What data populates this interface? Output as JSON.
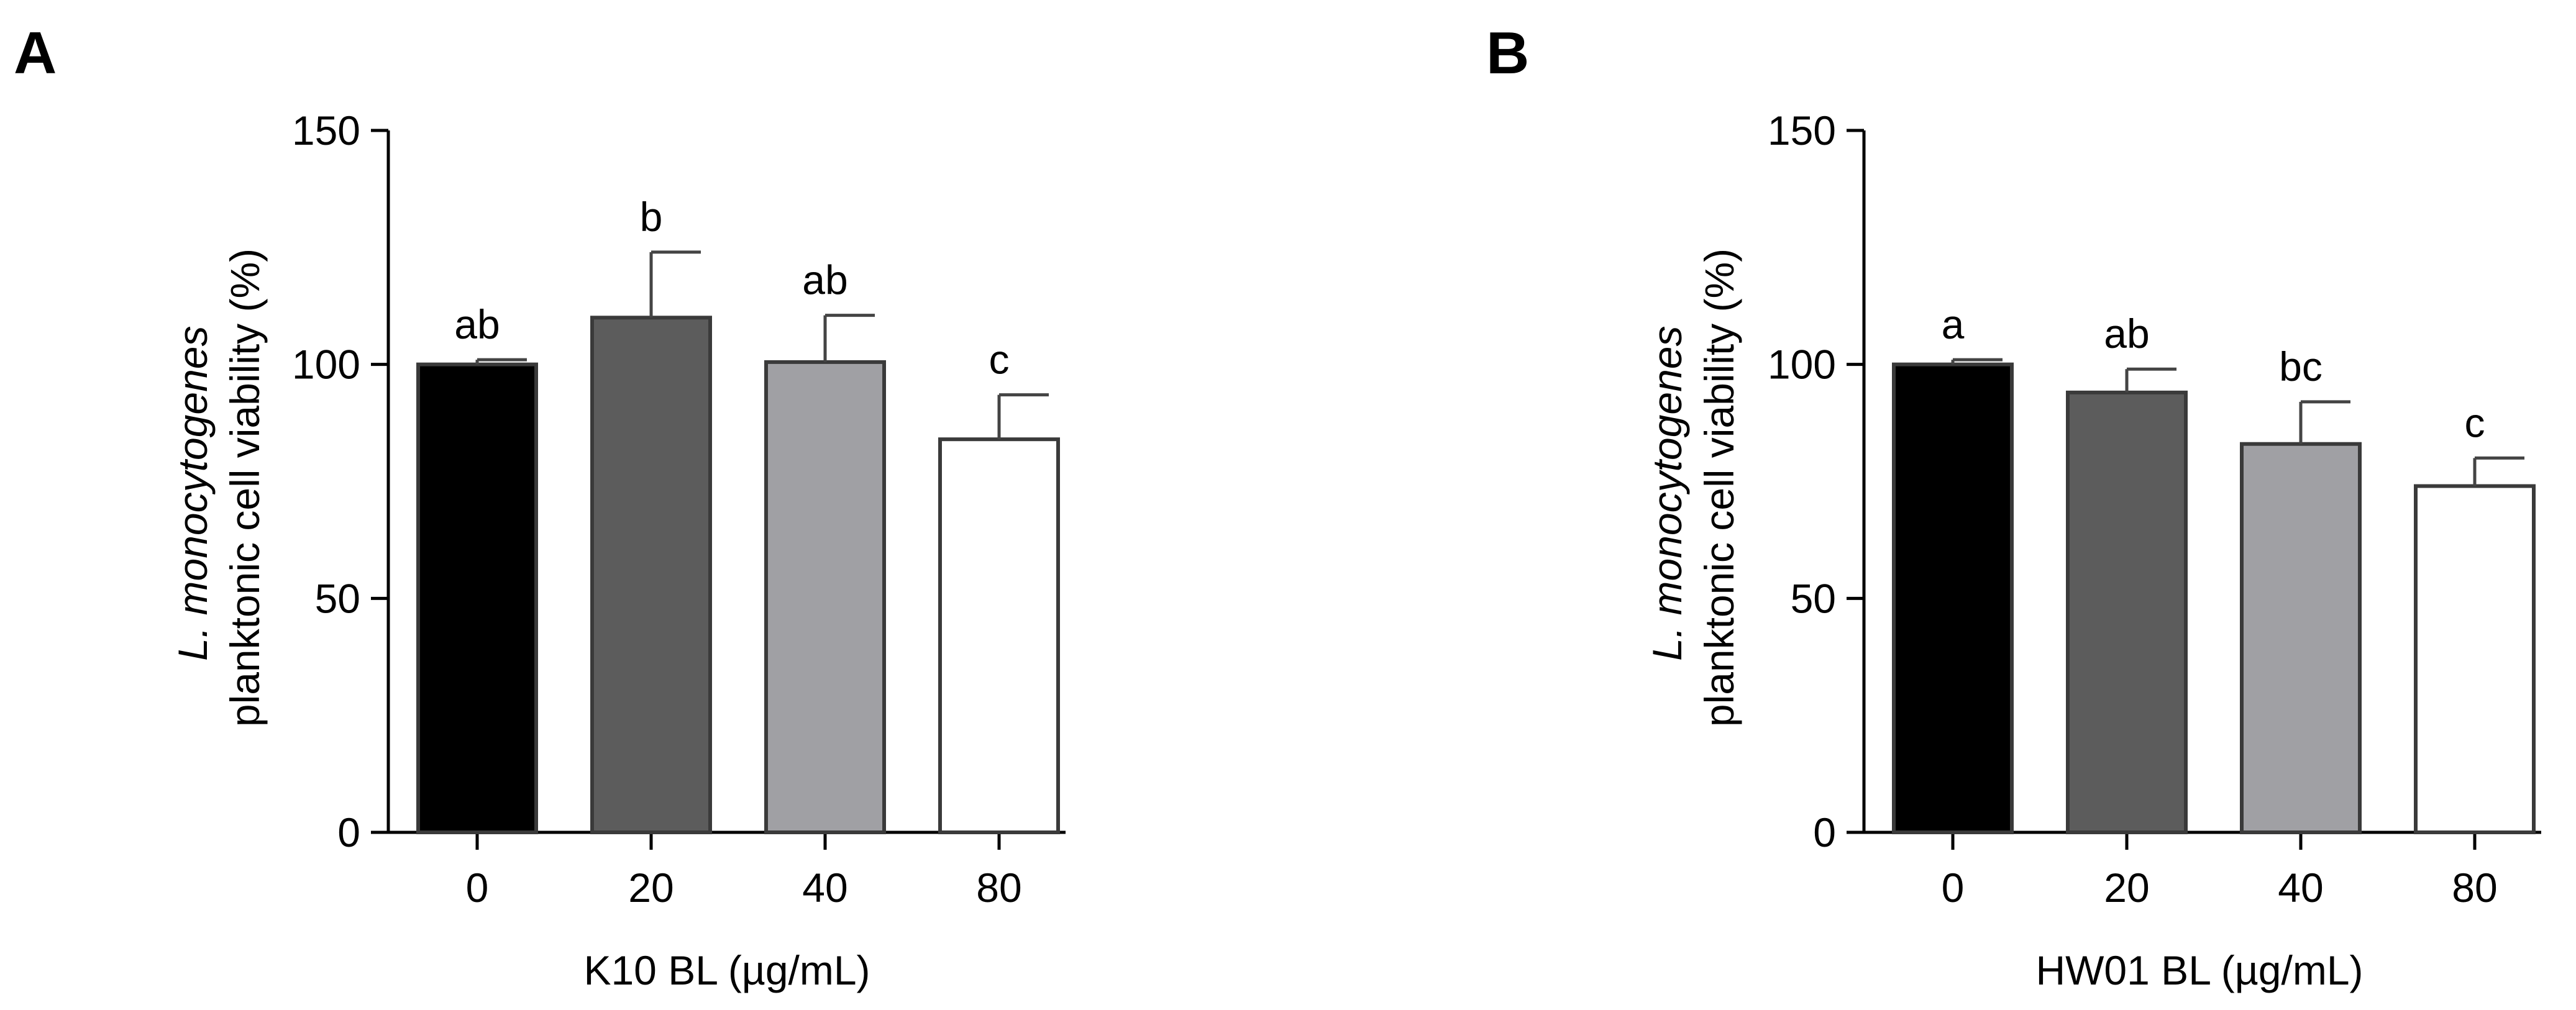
{
  "chart_data": [
    {
      "type": "bar",
      "panel": "A",
      "categories": [
        "0",
        "20",
        "40",
        "80"
      ],
      "values": [
        100,
        110,
        100.5,
        84
      ],
      "errors": [
        1,
        14,
        10,
        9.5
      ],
      "letters": [
        "ab",
        "b",
        "ab",
        "c"
      ],
      "bar_colors": [
        "#000000",
        "#5c5c5c",
        "#a0a0a4",
        "#ffffff"
      ],
      "ylabel_italic": "L. monocytogenes",
      "ylabel": "planktonic cell viability (%)",
      "xlabel": "K10 BL (µg/mL)",
      "ylim": [
        0,
        150
      ],
      "yticks": [
        0,
        50,
        100,
        150
      ]
    },
    {
      "type": "bar",
      "panel": "B",
      "categories": [
        "0",
        "20",
        "40",
        "80"
      ],
      "values": [
        100,
        94,
        83,
        74
      ],
      "errors": [
        1,
        5,
        9,
        6
      ],
      "letters": [
        "a",
        "ab",
        "bc",
        "c"
      ],
      "bar_colors": [
        "#000000",
        "#5c5c5c",
        "#a0a0a4",
        "#ffffff"
      ],
      "ylabel_italic": "L. monocytogenes",
      "ylabel": "planktonic cell viability (%)",
      "xlabel": "HW01 BL (µg/mL)",
      "ylim": [
        0,
        150
      ],
      "yticks": [
        0,
        50,
        100,
        150
      ]
    }
  ]
}
